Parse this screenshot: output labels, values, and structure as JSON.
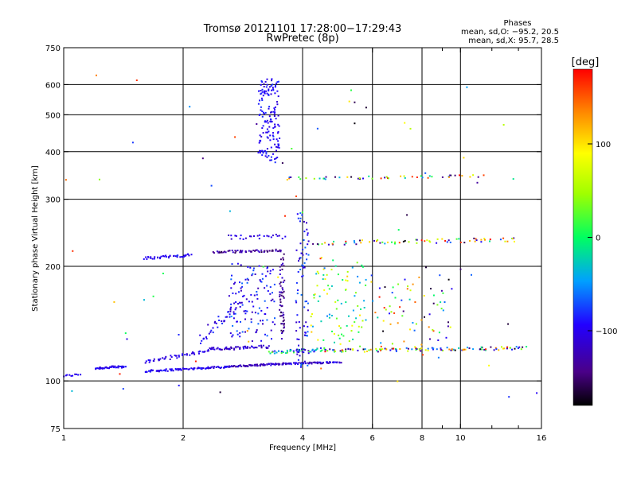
{
  "header": {
    "title_line1": "Tromsø 20121101 17:28:00−17:29:43",
    "title_line2": "RwPretec (8p)",
    "phase_title": "Phases",
    "phase_o": "mean, sd,O: −95.2, 20.5",
    "phase_x": "mean, sd,X:  95.7, 28.5"
  },
  "colorbar": {
    "label": "[deg]",
    "min": -180,
    "max": 180,
    "ticks": [
      {
        "value": 100,
        "label": "100"
      },
      {
        "value": 0,
        "label": "0"
      },
      {
        "value": -100,
        "label": "−100"
      }
    ]
  },
  "chart_data": {
    "type": "scatter",
    "title": "Tromsø 20121101 17:28:00−17:29:43",
    "subtitle": "RwPretec (8p)",
    "xlabel": "Frequency [MHz]",
    "ylabel": "Stationary phase Virtual Height [km]",
    "x_scale": "log",
    "y_scale": "log",
    "xlim": [
      1,
      16
    ],
    "ylim": [
      75,
      750
    ],
    "x_ticks": [
      {
        "value": 1,
        "label": "1"
      },
      {
        "value": 2,
        "label": "2"
      },
      {
        "value": 4,
        "label": "4"
      },
      {
        "value": 6,
        "label": "6"
      },
      {
        "value": 8,
        "label": "8"
      },
      {
        "value": 10,
        "label": "10"
      },
      {
        "value": 16,
        "label": "16"
      }
    ],
    "x_minor": [
      9,
      12,
      14
    ],
    "y_ticks": [
      {
        "value": 75,
        "label": "75"
      },
      {
        "value": 100,
        "label": "100"
      },
      {
        "value": 200,
        "label": "200"
      },
      {
        "value": 300,
        "label": "300"
      },
      {
        "value": 400,
        "label": "400"
      },
      {
        "value": 500,
        "label": "500"
      },
      {
        "value": 600,
        "label": "600"
      },
      {
        "value": 750,
        "label": "750"
      }
    ],
    "grid": true,
    "grid_x": [
      2,
      4,
      6,
      8,
      10
    ],
    "grid_y": [
      100,
      200,
      300,
      400,
      500,
      600
    ],
    "color_scale": "phase (deg)",
    "traces": [
      {
        "x0": 1.0,
        "x1": 1.1,
        "y0": 103,
        "y1": 104,
        "n": 10,
        "jitter": 0.012,
        "phase": [
          -110,
          -90
        ]
      },
      {
        "x0": 1.2,
        "x1": 1.43,
        "y0": 108,
        "y1": 109,
        "n": 40,
        "jitter": 0.015,
        "phase": [
          -115,
          -85
        ]
      },
      {
        "x0": 1.6,
        "x1": 2.6,
        "y0": 106,
        "y1": 109,
        "n": 90,
        "jitter": 0.012,
        "phase": [
          -115,
          -85
        ]
      },
      {
        "x0": 2.6,
        "x1": 3.6,
        "y0": 109,
        "y1": 111,
        "n": 80,
        "jitter": 0.01,
        "phase": [
          -140,
          -100
        ]
      },
      {
        "x0": 3.6,
        "x1": 5.0,
        "y0": 111,
        "y1": 112,
        "n": 60,
        "jitter": 0.01,
        "phase": [
          -130,
          -90
        ]
      },
      {
        "x0": 1.6,
        "x1": 2.3,
        "y0": 112,
        "y1": 120,
        "n": 45,
        "jitter": 0.02,
        "phase": [
          -115,
          -90
        ]
      },
      {
        "x0": 2.3,
        "x1": 3.3,
        "y0": 121,
        "y1": 123,
        "n": 60,
        "jitter": 0.02,
        "phase": [
          -130,
          -95
        ]
      },
      {
        "x0": 3.3,
        "x1": 4.6,
        "y0": 119,
        "y1": 121,
        "n": 50,
        "jitter": 0.02,
        "phase": [
          -130,
          40
        ]
      },
      {
        "x0": 4.6,
        "x1": 14.5,
        "y0": 120,
        "y1": 122,
        "n": 110,
        "jitter": 0.02,
        "phase": [
          -180,
          180
        ]
      },
      {
        "x0": 1.6,
        "x1": 2.1,
        "y0": 210,
        "y1": 214,
        "n": 40,
        "jitter": 0.015,
        "phase": [
          -110,
          -90
        ]
      },
      {
        "x0": 2.4,
        "x1": 3.5,
        "y0": 218,
        "y1": 220,
        "n": 55,
        "jitter": 0.015,
        "phase": [
          -160,
          -110
        ]
      },
      {
        "x0": 2.6,
        "x1": 3.6,
        "y0": 238,
        "y1": 240,
        "n": 25,
        "jitter": 0.03,
        "phase": [
          -120,
          -90
        ]
      },
      {
        "x0": 4.3,
        "x1": 14.0,
        "y0": 230,
        "y1": 235,
        "n": 70,
        "jitter": 0.025,
        "phase": [
          -180,
          180
        ]
      },
      {
        "x0": 3.55,
        "x1": 11.5,
        "y0": 340,
        "y1": 345,
        "n": 50,
        "jitter": 0.015,
        "phase": [
          -180,
          180
        ]
      },
      {
        "x0": 3.1,
        "x1": 3.5,
        "y0": 380,
        "y1": 620,
        "n": 150,
        "jitter": 0.05,
        "phase": [
          -115,
          -80
        ]
      },
      {
        "x0": 3.5,
        "x1": 3.6,
        "y0": 130,
        "y1": 220,
        "n": 60,
        "jitter": 0.08,
        "phase": [
          -160,
          -110
        ]
      },
      {
        "x0": 2.6,
        "x1": 3.4,
        "y0": 130,
        "y1": 200,
        "n": 120,
        "jitter": 0.1,
        "phase": [
          -130,
          -60
        ]
      },
      {
        "x0": 2.2,
        "x1": 2.8,
        "y0": 130,
        "y1": 160,
        "n": 40,
        "jitter": 0.08,
        "phase": [
          -120,
          -80
        ]
      },
      {
        "x0": 3.85,
        "x1": 4.15,
        "y0": 110,
        "y1": 290,
        "n": 80,
        "jitter": 0.08,
        "phase": [
          -120,
          -60
        ]
      },
      {
        "x0": 4.2,
        "x1": 5.8,
        "y0": 125,
        "y1": 200,
        "n": 90,
        "jitter": 0.12,
        "phase": [
          -60,
          120
        ]
      },
      {
        "x0": 6.0,
        "x1": 9.5,
        "y0": 125,
        "y1": 190,
        "n": 70,
        "jitter": 0.15,
        "phase": [
          -180,
          180
        ]
      },
      {
        "x0": 1.0,
        "x1": 14.5,
        "y0": 90,
        "y1": 650,
        "n": 70,
        "jitter": 0.3,
        "phase": [
          -180,
          180
        ]
      }
    ]
  }
}
